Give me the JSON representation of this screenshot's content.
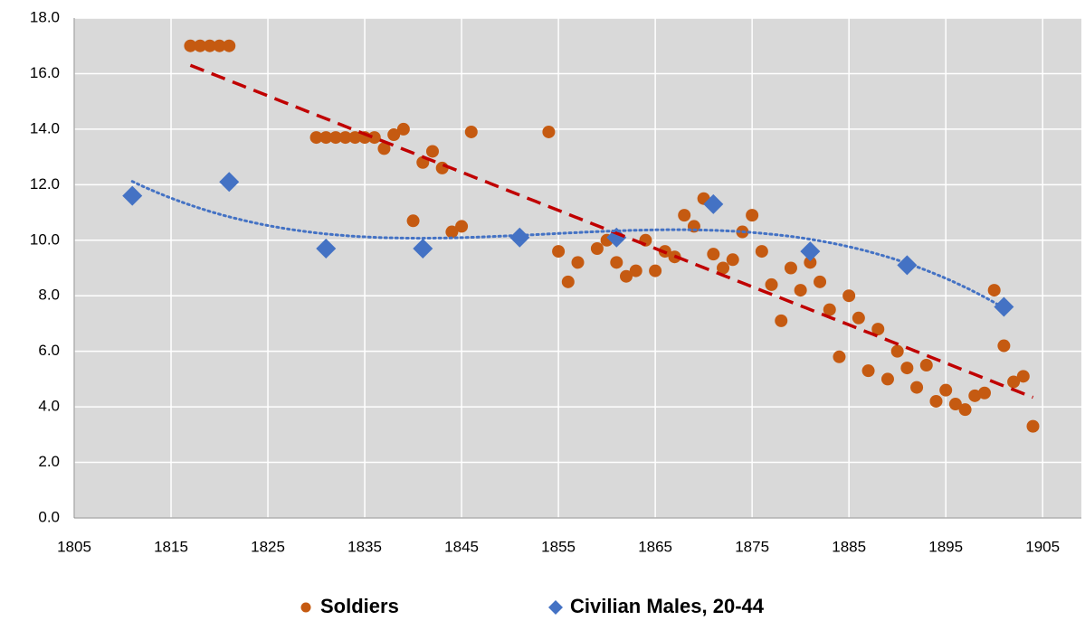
{
  "chart_data": {
    "type": "scatter",
    "xlim": [
      1805,
      1909
    ],
    "xticks": [
      1805,
      1815,
      1825,
      1835,
      1845,
      1855,
      1865,
      1875,
      1885,
      1895,
      1905
    ],
    "ylim": [
      0,
      18
    ],
    "yticks": [
      {
        "value": 0,
        "label": "0.0"
      },
      {
        "value": 2,
        "label": "2.0"
      },
      {
        "value": 4,
        "label": "4.0"
      },
      {
        "value": 6,
        "label": "6.0"
      },
      {
        "value": 8,
        "label": "8.0"
      },
      {
        "value": 10,
        "label": "10.0"
      },
      {
        "value": 12,
        "label": "12.0"
      },
      {
        "value": 14,
        "label": "14.0"
      },
      {
        "value": 16,
        "label": "16.0"
      },
      {
        "value": 18,
        "label": "18.0"
      }
    ],
    "grid": true,
    "legend": "bottom",
    "series": [
      {
        "name": "Soldiers",
        "color": "#c55a11",
        "marker": "circle",
        "trendline": "linear",
        "trendline_color": "#c00000",
        "x": [
          1817,
          1818,
          1819,
          1820,
          1821,
          1830,
          1831,
          1832,
          1833,
          1834,
          1835,
          1836,
          1837,
          1838,
          1839,
          1840,
          1841,
          1842,
          1843,
          1844,
          1845,
          1846,
          1854,
          1855,
          1856,
          1857,
          1859,
          1860,
          1861,
          1862,
          1863,
          1864,
          1865,
          1866,
          1867,
          1868,
          1869,
          1870,
          1871,
          1872,
          1873,
          1874,
          1875,
          1876,
          1877,
          1878,
          1879,
          1880,
          1881,
          1882,
          1883,
          1884,
          1885,
          1886,
          1887,
          1888,
          1889,
          1890,
          1891,
          1892,
          1893,
          1894,
          1895,
          1896,
          1897,
          1898,
          1899,
          1900,
          1901,
          1902,
          1903,
          1904
        ],
        "values": [
          17.0,
          17.0,
          17.0,
          17.0,
          17.0,
          13.7,
          13.7,
          13.7,
          13.7,
          13.7,
          13.7,
          13.7,
          13.3,
          13.8,
          14.0,
          10.7,
          12.8,
          13.2,
          12.6,
          10.3,
          10.5,
          13.9,
          13.9,
          9.6,
          8.5,
          9.2,
          9.7,
          10.0,
          9.2,
          8.7,
          8.9,
          10.0,
          8.9,
          9.6,
          9.4,
          10.9,
          10.5,
          11.5,
          9.5,
          9.0,
          9.3,
          10.3,
          10.9,
          9.6,
          8.4,
          7.1,
          9.0,
          8.2,
          9.2,
          8.5,
          7.5,
          5.8,
          8.0,
          7.2,
          5.3,
          6.8,
          5.0,
          6.0,
          5.4,
          4.7,
          5.5,
          4.2,
          4.6,
          4.1,
          3.9,
          4.4,
          4.5,
          8.2,
          6.2,
          4.9,
          5.1,
          3.3
        ]
      },
      {
        "name": "Civilian Males, 20-44",
        "color": "#4472c4",
        "marker": "diamond",
        "trendline": "polynomial",
        "trendline_order": 3,
        "trendline_color": "#4472c4",
        "x": [
          1811,
          1821,
          1831,
          1841,
          1851,
          1861,
          1871,
          1881,
          1891,
          1901
        ],
        "values": [
          11.6,
          12.1,
          9.7,
          9.7,
          10.1,
          10.1,
          11.3,
          9.6,
          9.1,
          7.6
        ]
      }
    ]
  }
}
